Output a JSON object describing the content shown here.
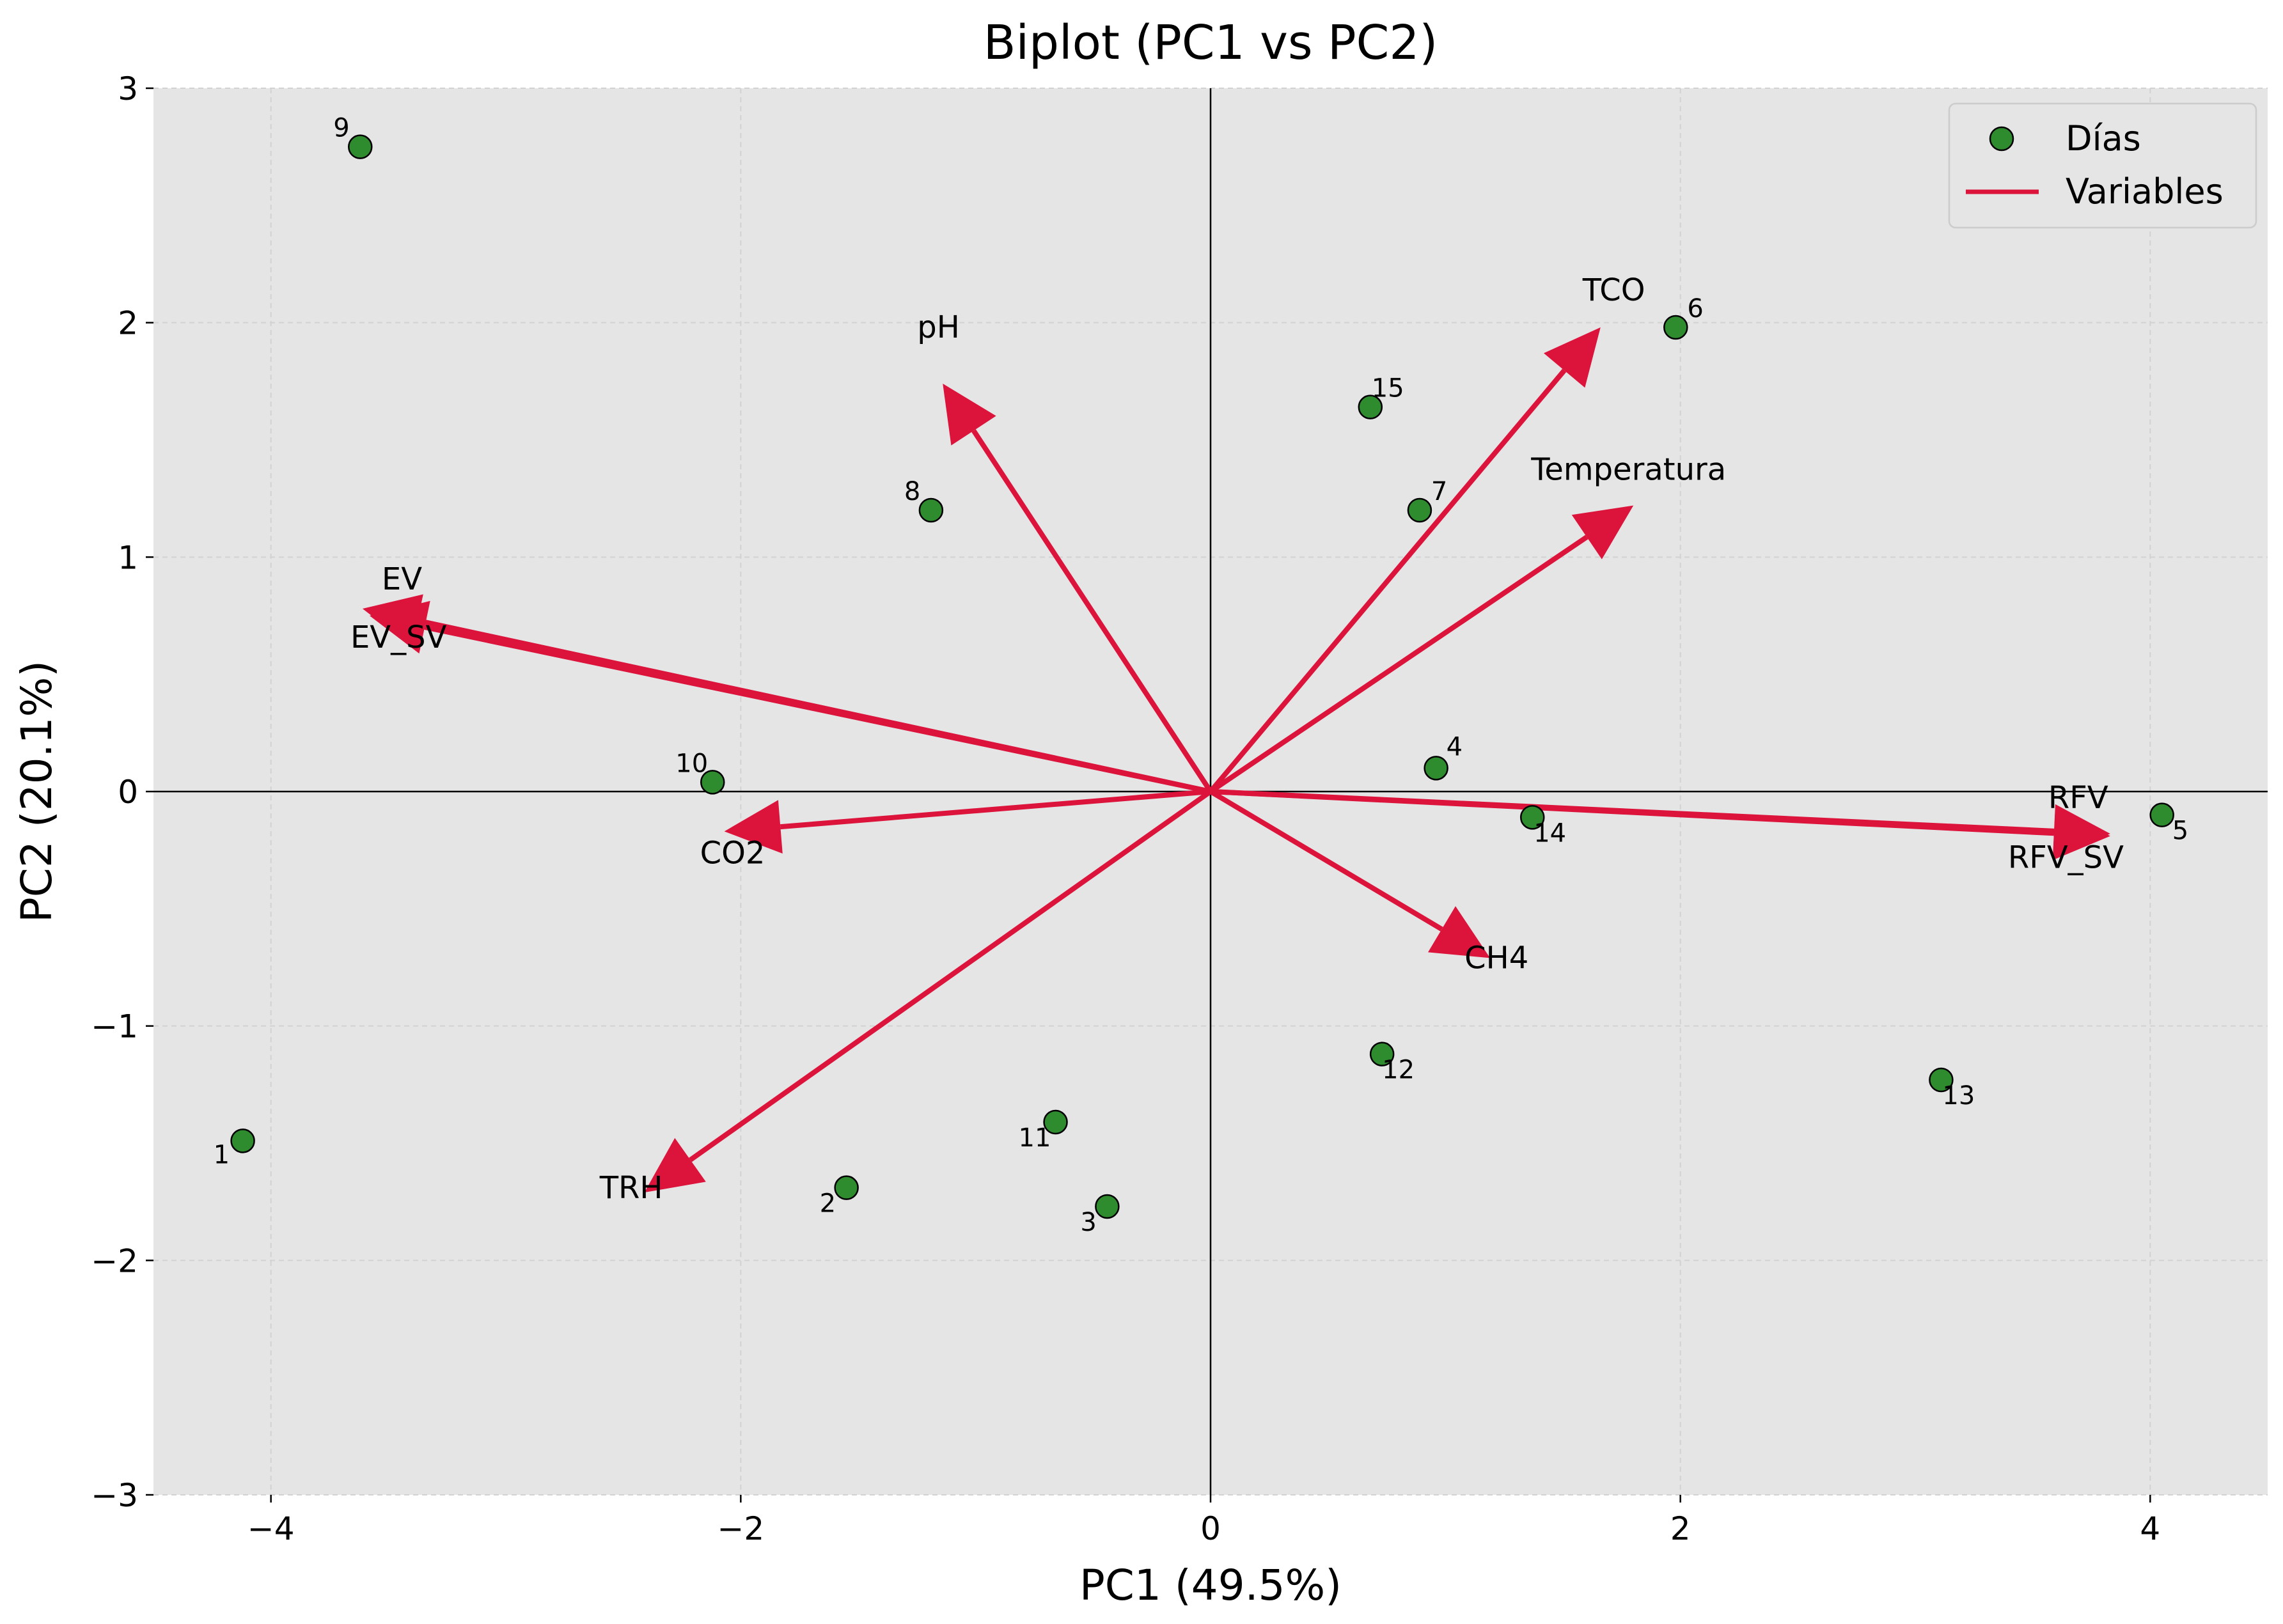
{
  "chart_data": {
    "type": "scatter",
    "title": "Biplot (PC1 vs PC2)",
    "xlabel": "PC1 (49.5%)",
    "ylabel": "PC2 (20.1%)",
    "xlim": [
      -4.5,
      4.5
    ],
    "ylim": [
      -3,
      3
    ],
    "xticks": [
      -4,
      -2,
      0,
      2,
      4
    ],
    "xtick_labels": [
      "−4",
      "−2",
      "0",
      "2",
      "4"
    ],
    "yticks": [
      -3,
      -2,
      -1,
      0,
      1,
      2,
      3
    ],
    "ytick_labels": [
      "−3",
      "−2",
      "−1",
      "0",
      "1",
      "2",
      "3"
    ],
    "grid": true,
    "reference_lines": {
      "x": 0,
      "y": 0
    },
    "legend": {
      "placement": "top-right",
      "entries": [
        {
          "label": "Días",
          "kind": "marker",
          "color": "#2e8b2e"
        },
        {
          "label": "Variables",
          "kind": "line",
          "color": "#dc143c"
        }
      ]
    },
    "colors": {
      "points": "#2e8b2e",
      "point_edge": "#000000",
      "vectors": "#dc143c",
      "plot_background": "#e5e5e5"
    },
    "points": [
      {
        "label": "1",
        "x": -4.12,
        "y": -1.49
      },
      {
        "label": "2",
        "x": -1.55,
        "y": -1.69
      },
      {
        "label": "3",
        "x": -0.44,
        "y": -1.77
      },
      {
        "label": "4",
        "x": 0.96,
        "y": 0.1
      },
      {
        "label": "5",
        "x": 4.05,
        "y": -0.1
      },
      {
        "label": "6",
        "x": 1.98,
        "y": 1.98
      },
      {
        "label": "7",
        "x": 0.89,
        "y": 1.2
      },
      {
        "label": "8",
        "x": -1.19,
        "y": 1.2
      },
      {
        "label": "9",
        "x": -3.62,
        "y": 2.75
      },
      {
        "label": "10",
        "x": -2.12,
        "y": 0.04
      },
      {
        "label": "11",
        "x": -0.66,
        "y": -1.41
      },
      {
        "label": "12",
        "x": 0.73,
        "y": -1.12
      },
      {
        "label": "13",
        "x": 3.11,
        "y": -1.23
      },
      {
        "label": "14",
        "x": 1.37,
        "y": -0.11
      },
      {
        "label": "15",
        "x": 0.68,
        "y": 1.64
      }
    ],
    "vectors": [
      {
        "label": "pH",
        "x": -1.14,
        "y": 1.74
      },
      {
        "label": "TCO",
        "x": 1.66,
        "y": 1.98
      },
      {
        "label": "Temperatura",
        "x": 1.8,
        "y": 1.22
      },
      {
        "label": "EV",
        "x": -3.61,
        "y": 0.78
      },
      {
        "label": "EV_SV",
        "x": -3.58,
        "y": 0.75
      },
      {
        "label": "CO2",
        "x": -2.07,
        "y": -0.17
      },
      {
        "label": "RFV",
        "x": 3.83,
        "y": -0.18
      },
      {
        "label": "RFV_SV",
        "x": 3.83,
        "y": -0.19
      },
      {
        "label": "CH4",
        "x": 1.19,
        "y": -0.71
      },
      {
        "label": "TRH",
        "x": -2.41,
        "y": -1.71
      }
    ]
  }
}
